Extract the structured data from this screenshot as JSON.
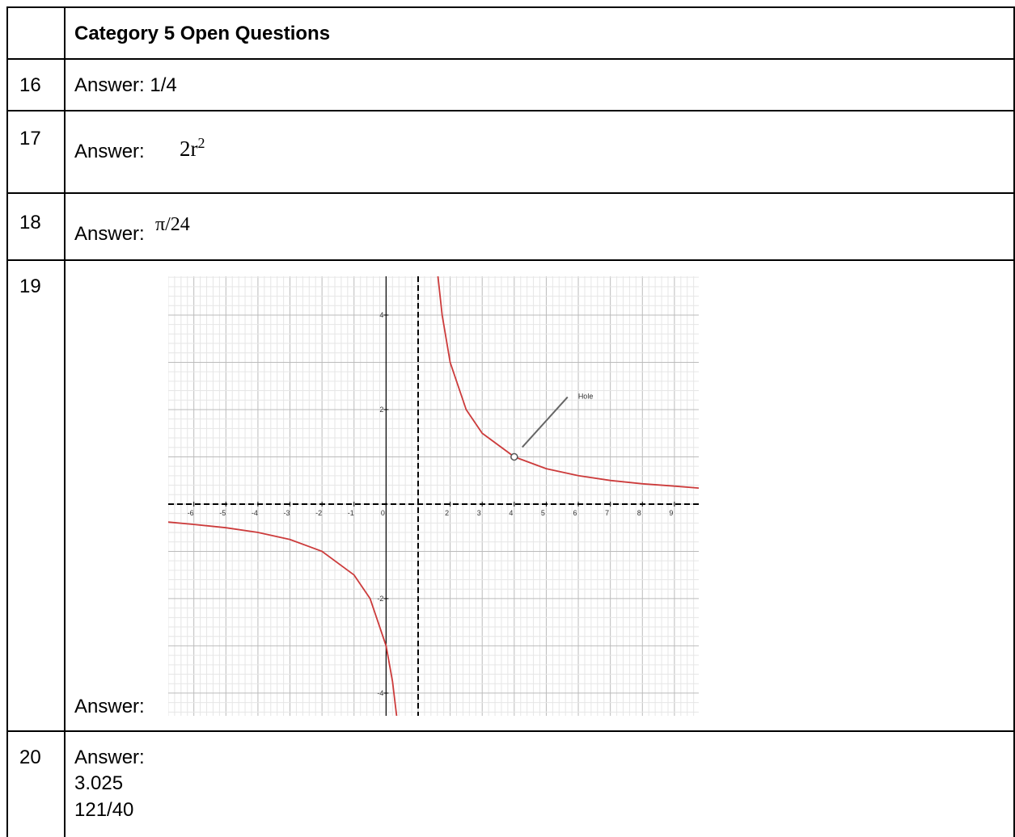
{
  "table": {
    "header": "Category 5 Open Questions",
    "rows": [
      {
        "number": "16",
        "lines": [
          "Answer: 1/4"
        ]
      },
      {
        "number": "17",
        "label": "Answer:",
        "math": "2r",
        "sup": "2"
      },
      {
        "number": "18",
        "label": "Answer:",
        "math": "π/24"
      },
      {
        "number": "19",
        "label": "Answer:"
      },
      {
        "number": "20",
        "lines": [
          "Answer:",
          "3.025",
          "121/40"
        ]
      }
    ]
  },
  "graph": {
    "xlim": [
      -6.8,
      9.76
    ],
    "ylim": [
      -4.48,
      4.82
    ],
    "xticks": [
      -6,
      -5,
      -4,
      -3,
      -2,
      -1,
      0,
      2,
      3,
      4,
      5,
      6,
      7,
      8,
      9
    ],
    "yticks": [
      4,
      2,
      -2,
      -4
    ],
    "asymptote_x": 1,
    "asymptote_y": 0,
    "curve": {
      "x": [
        -6.8,
        -6,
        -5,
        -4,
        -3,
        -2,
        -1,
        -0.5,
        0,
        0.2,
        0.33,
        null,
        1.62,
        1.75,
        2,
        2.5,
        3,
        4,
        5,
        6,
        7,
        8,
        9,
        9.76
      ],
      "y": [
        -0.38,
        -0.43,
        -0.5,
        -0.6,
        -0.75,
        -1,
        -1.5,
        -2,
        -3,
        -3.75,
        -4.48,
        null,
        4.82,
        4,
        3,
        2,
        1.5,
        1,
        0.75,
        0.6,
        0.5,
        0.43,
        0.38,
        0.34
      ]
    },
    "color": "#cc3b3b",
    "hole": {
      "x": 4,
      "y": 1
    },
    "annotation": "Hole"
  }
}
